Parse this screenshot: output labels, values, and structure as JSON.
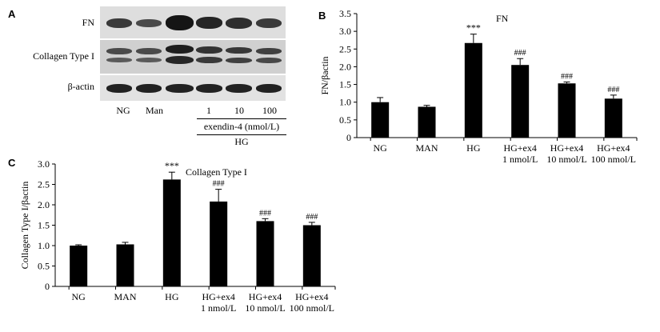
{
  "panel_a": {
    "letter": "A",
    "rows": [
      "FN",
      "Collagen Type I",
      "β-actin"
    ],
    "lanes": [
      "NG",
      "Man",
      "",
      "1",
      "10",
      "100"
    ],
    "treatment": "exendin-4 (nmol/L)",
    "group": "HG"
  },
  "chart_data": [
    {
      "panel": "B",
      "type": "bar",
      "title": "FN",
      "ylabel": "FN/βactin",
      "xlabel": "",
      "ylim": [
        0,
        3.5
      ],
      "yticks": [
        "0",
        "0.5",
        "1.0",
        "1.5",
        "2.0",
        "2.5",
        "3.0",
        "3.5"
      ],
      "categories": [
        [
          "NG"
        ],
        [
          "MAN"
        ],
        [
          "HG"
        ],
        [
          "HG+ex4",
          "1 nmol/L"
        ],
        [
          "HG+ex4",
          "10 nmol/L"
        ],
        [
          "HG+ex4",
          "100 nmol/L"
        ]
      ],
      "values": [
        1.0,
        0.87,
        2.67,
        2.05,
        1.53,
        1.1
      ],
      "errors": [
        0.13,
        0.04,
        0.25,
        0.18,
        0.04,
        0.1
      ],
      "annotations": [
        "",
        "",
        "***",
        "###",
        "###",
        "###"
      ]
    },
    {
      "panel": "C",
      "type": "bar",
      "title": "Collagen Type I",
      "ylabel": "Collagen Type I/βactin",
      "xlabel": "",
      "ylim": [
        0,
        3.0
      ],
      "yticks": [
        "0",
        "0.5",
        "1.0",
        "1.5",
        "2.0",
        "2.5",
        "3.0"
      ],
      "categories": [
        [
          "NG"
        ],
        [
          "MAN"
        ],
        [
          "HG"
        ],
        [
          "HG+ex4",
          "1 nmol/L"
        ],
        [
          "HG+ex4",
          "10 nmol/L"
        ],
        [
          "HG+ex4",
          "100 nmol/L"
        ]
      ],
      "values": [
        1.0,
        1.03,
        2.62,
        2.08,
        1.6,
        1.5
      ],
      "errors": [
        0.02,
        0.05,
        0.18,
        0.3,
        0.06,
        0.07
      ],
      "annotations": [
        "",
        "",
        "***",
        "###",
        "###",
        "###"
      ]
    }
  ]
}
